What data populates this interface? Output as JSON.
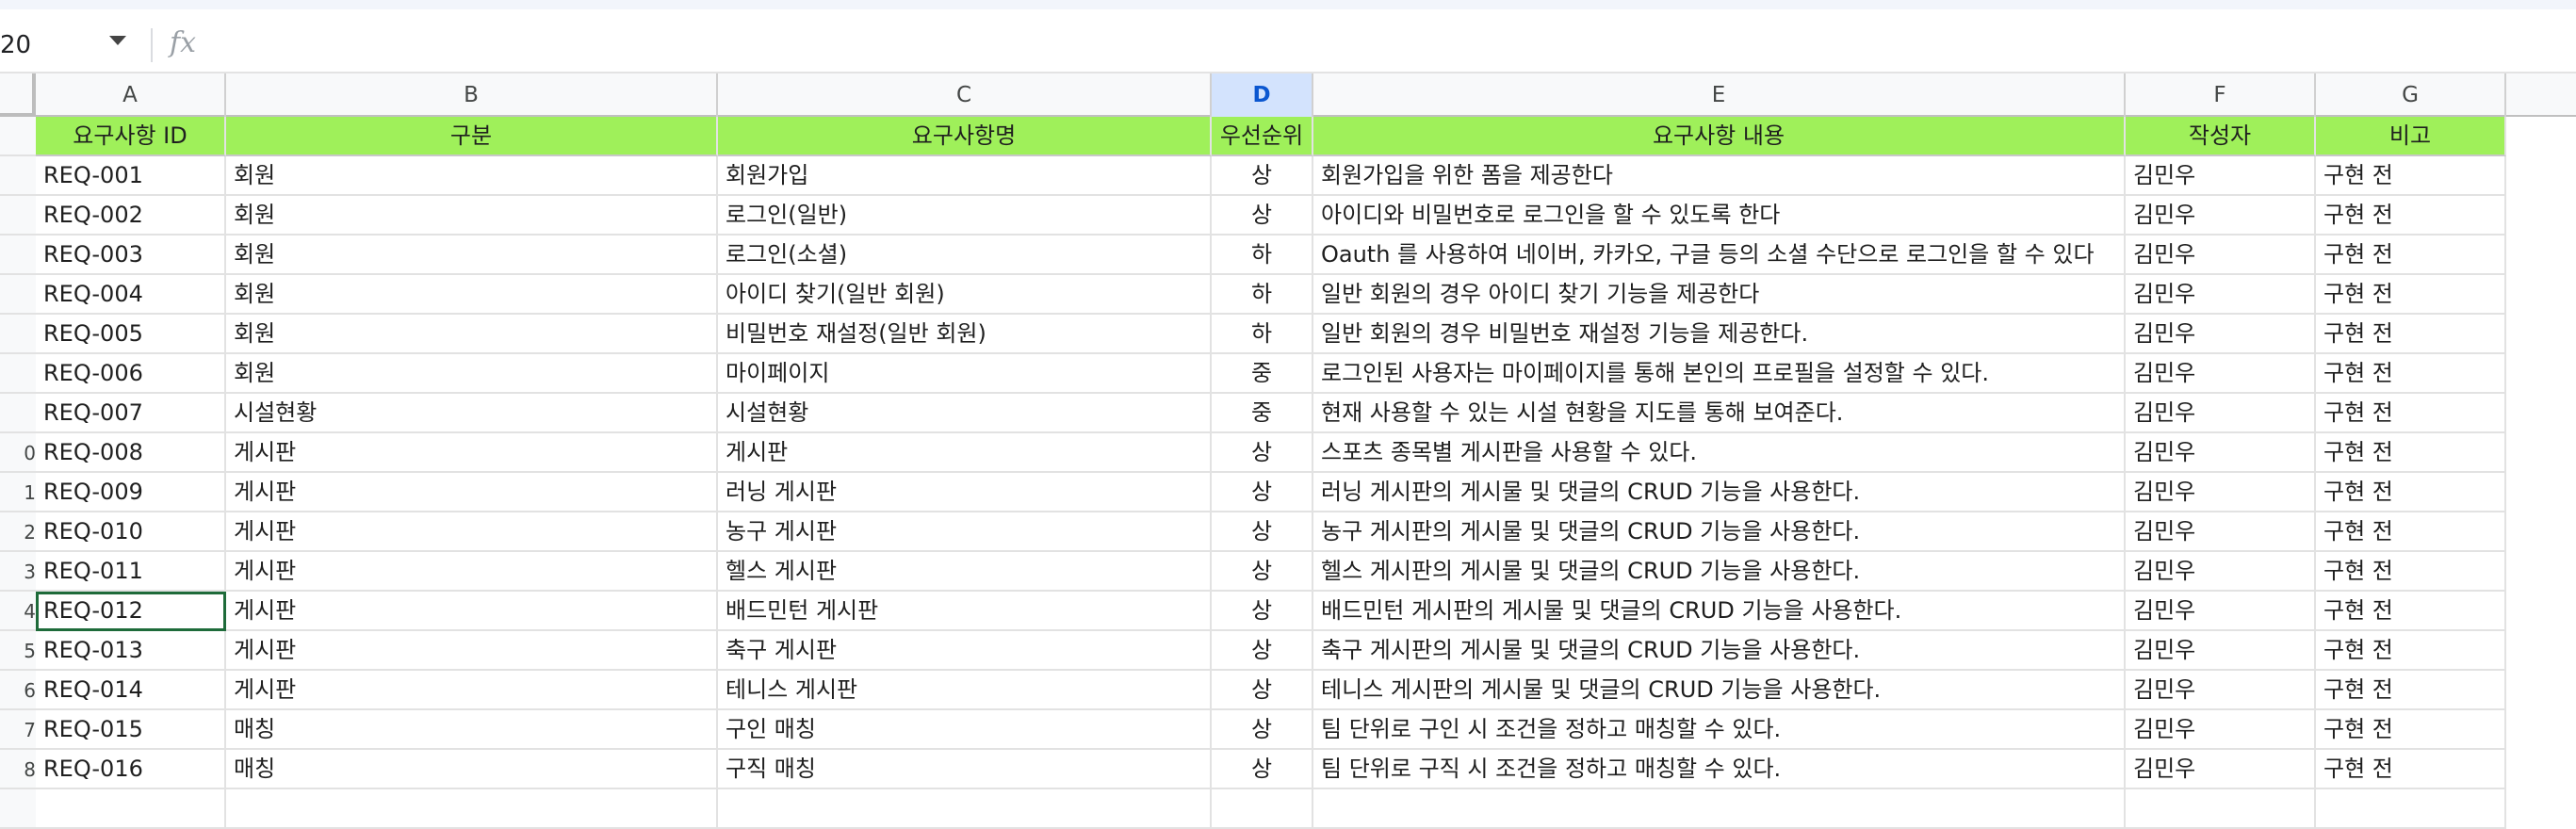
{
  "formula_bar": {
    "name_box": "20",
    "fx_label": "fx",
    "formula": ""
  },
  "columns": [
    "A",
    "B",
    "C",
    "D",
    "E",
    "F",
    "G"
  ],
  "selected_column": "D",
  "row_numbers": [
    "",
    "",
    "",
    "",
    "",
    "",
    "",
    "",
    "0",
    "1",
    "2",
    "3",
    "4",
    "5",
    "6",
    "7",
    "8"
  ],
  "header": [
    "요구사항 ID",
    "구분",
    "요구사항명",
    "우선순위",
    "요구사항 내용",
    "작성자",
    "비고"
  ],
  "rows": [
    [
      "REQ-001",
      "회원",
      "회원가입",
      "상",
      "회원가입을 위한 폼을 제공한다",
      "김민우",
      "구현 전"
    ],
    [
      "REQ-002",
      "회원",
      "로그인(일반)",
      "상",
      "아이디와 비밀번호로 로그인을 할 수 있도록 한다",
      "김민우",
      "구현 전"
    ],
    [
      "REQ-003",
      "회원",
      "로그인(소셜)",
      "하",
      "Oauth 를 사용하여 네이버, 카카오, 구글 등의 소셜 수단으로 로그인을 할 수 있다",
      "김민우",
      "구현 전"
    ],
    [
      "REQ-004",
      "회원",
      "아이디 찾기(일반 회원)",
      "하",
      "일반 회원의 경우 아이디 찾기 기능을 제공한다",
      "김민우",
      "구현 전"
    ],
    [
      "REQ-005",
      "회원",
      "비밀번호 재설정(일반 회원)",
      "하",
      "일반 회원의 경우 비밀번호 재설정 기능을 제공한다.",
      "김민우",
      "구현 전"
    ],
    [
      "REQ-006",
      "회원",
      "마이페이지",
      "중",
      "로그인된 사용자는 마이페이지를 통해 본인의 프로필을 설정할 수 있다.",
      "김민우",
      "구현 전"
    ],
    [
      "REQ-007",
      "시설현황",
      "시설현황",
      "중",
      "현재 사용할 수 있는 시설 현황을 지도를 통해 보여준다.",
      "김민우",
      "구현 전"
    ],
    [
      "REQ-008",
      "게시판",
      "게시판",
      "상",
      "스포츠 종목별 게시판을 사용할 수 있다.",
      "김민우",
      "구현 전"
    ],
    [
      "REQ-009",
      "게시판",
      "러닝 게시판",
      "상",
      "러닝 게시판의 게시물 및 댓글의 CRUD 기능을 사용한다.",
      "김민우",
      "구현 전"
    ],
    [
      "REQ-010",
      "게시판",
      "농구 게시판",
      "상",
      "농구 게시판의 게시물 및 댓글의 CRUD 기능을 사용한다.",
      "김민우",
      "구현 전"
    ],
    [
      "REQ-011",
      "게시판",
      "헬스 게시판",
      "상",
      "헬스 게시판의 게시물 및 댓글의 CRUD 기능을 사용한다.",
      "김민우",
      "구현 전"
    ],
    [
      "REQ-012",
      "게시판",
      "배드민턴 게시판",
      "상",
      "배드민턴 게시판의 게시물 및 댓글의 CRUD 기능을 사용한다.",
      "김민우",
      "구현 전"
    ],
    [
      "REQ-013",
      "게시판",
      "축구 게시판",
      "상",
      "축구 게시판의 게시물 및 댓글의 CRUD 기능을 사용한다.",
      "김민우",
      "구현 전"
    ],
    [
      "REQ-014",
      "게시판",
      "테니스 게시판",
      "상",
      "테니스 게시판의 게시물 및 댓글의 CRUD 기능을 사용한다.",
      "김민우",
      "구현 전"
    ],
    [
      "REQ-015",
      "매칭",
      "구인 매칭",
      "상",
      "팀 단위로 구인 시 조건을 정하고 매칭할 수 있다.",
      "김민우",
      "구현 전"
    ],
    [
      "REQ-016",
      "매칭",
      "구직 매칭",
      "상",
      "팀 단위로 구직 시 조건을 정하고 매칭할 수 있다.",
      "김민우",
      "구현 전"
    ]
  ],
  "active_cell": {
    "row": 11,
    "col": 0
  },
  "colors": {
    "header_fill": "#9ff05a",
    "selected_col_fill": "#d3e3fd",
    "active_border": "#1e6b3a"
  }
}
